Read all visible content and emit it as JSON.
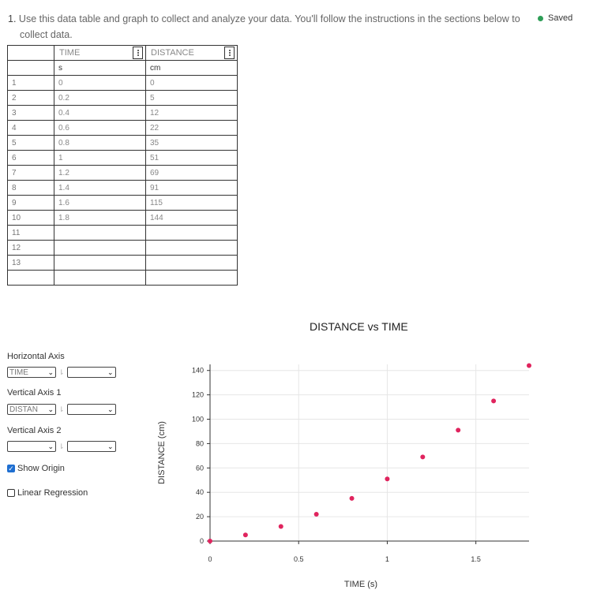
{
  "instructions": {
    "number": "1.",
    "text": "Use this data table and graph to collect and analyze your data. You'll follow the instructions in the sections below to",
    "text2": "collect data."
  },
  "status": {
    "saved_label": "Saved",
    "saved_color": "#2e9e57"
  },
  "table": {
    "columns": [
      {
        "name": "TIME",
        "unit": "s"
      },
      {
        "name": "DISTANCE",
        "unit": "cm"
      }
    ],
    "rows": [
      {
        "n": "1",
        "time": "0",
        "distance": "0"
      },
      {
        "n": "2",
        "time": "0.2",
        "distance": "5"
      },
      {
        "n": "3",
        "time": "0.4",
        "distance": "12"
      },
      {
        "n": "4",
        "time": "0.6",
        "distance": "22"
      },
      {
        "n": "5",
        "time": "0.8",
        "distance": "35"
      },
      {
        "n": "6",
        "time": "1",
        "distance": "51"
      },
      {
        "n": "7",
        "time": "1.2",
        "distance": "69"
      },
      {
        "n": "8",
        "time": "1.4",
        "distance": "91"
      },
      {
        "n": "9",
        "time": "1.6",
        "distance": "115"
      },
      {
        "n": "10",
        "time": "1.8",
        "distance": "144"
      },
      {
        "n": "11",
        "time": "",
        "distance": ""
      },
      {
        "n": "12",
        "time": "",
        "distance": ""
      },
      {
        "n": "13",
        "time": "",
        "distance": ""
      },
      {
        "n": "",
        "time": "",
        "distance": ""
      }
    ]
  },
  "controls": {
    "horizontal_axis": {
      "label": "Horizontal Axis",
      "value": "TIME"
    },
    "vertical_axis_1": {
      "label": "Vertical Axis 1",
      "value": "DISTAN"
    },
    "vertical_axis_2": {
      "label": "Vertical Axis 2",
      "value": ""
    },
    "show_origin": {
      "label": "Show Origin",
      "checked": true
    },
    "linear_regression": {
      "label": "Linear Regression",
      "checked": false
    },
    "swap_glyph": "⇂"
  },
  "chart_data": {
    "type": "scatter",
    "title": "DISTANCE vs TIME",
    "xlabel": "TIME (s)",
    "ylabel": "DISTANCE (cm)",
    "xlim": [
      0,
      1.8
    ],
    "ylim": [
      0,
      145
    ],
    "x_ticks": [
      "0",
      "0.5",
      "1",
      "1.5"
    ],
    "x_tick_values": [
      0,
      0.5,
      1,
      1.5
    ],
    "y_ticks": [
      "0",
      "20",
      "40",
      "60",
      "80",
      "100",
      "120",
      "140"
    ],
    "y_tick_values": [
      0,
      20,
      40,
      60,
      80,
      100,
      120,
      140
    ],
    "grid": true,
    "marker_color": "#e0245e",
    "series": [
      {
        "x": [
          0,
          0.2,
          0.4,
          0.6,
          0.8,
          1,
          1.2,
          1.4,
          1.6,
          1.8
        ],
        "y": [
          0,
          5,
          12,
          22,
          35,
          51,
          69,
          91,
          115,
          144
        ]
      }
    ]
  }
}
